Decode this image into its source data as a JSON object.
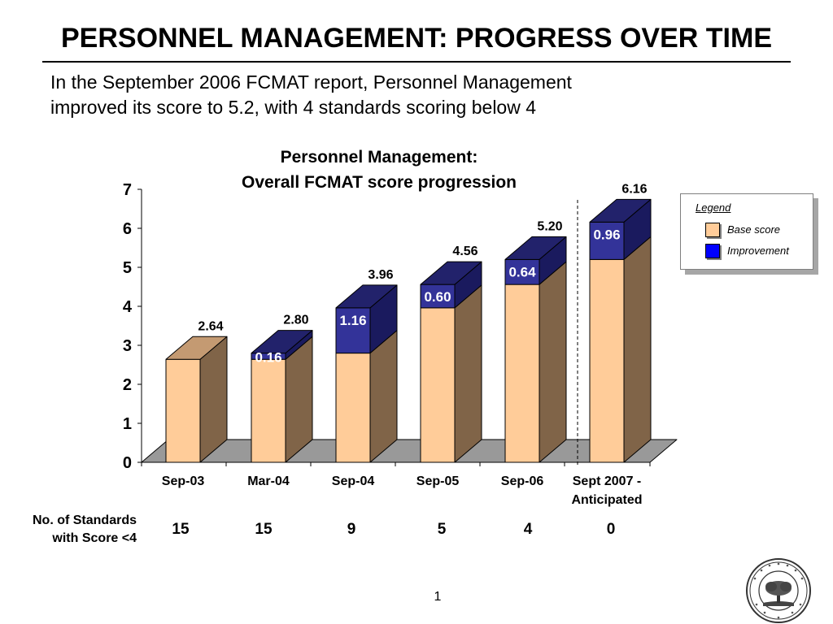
{
  "slide": {
    "title": "PERSONNEL MANAGEMENT: PROGRESS OVER TIME",
    "subtitle_lines": [
      "In the September 2006 FCMAT report, Personnel Management",
      "improved its score to 5.2, with 4 standards scoring below 4"
    ],
    "page_number": "1"
  },
  "legend": {
    "title": "Legend",
    "items": [
      {
        "label": "Base score",
        "color": "#FFCC99"
      },
      {
        "label": "Improvement",
        "color": "#0000FF"
      }
    ]
  },
  "standards_row": {
    "label_lines": [
      "No. of Standards",
      "with Score <4"
    ],
    "values": [
      "15",
      "15",
      "9",
      "5",
      "4",
      "0"
    ]
  },
  "chart_data": {
    "type": "bar",
    "stacked": true,
    "title_lines": [
      "Personnel Management:",
      "Overall FCMAT score progression"
    ],
    "categories": [
      "Sep-03",
      "Mar-04",
      "Sep-04",
      "Sep-05",
      "Sep-06",
      "Sept 2007 - Anticipated"
    ],
    "category_label_lines": [
      [
        "Sep-03"
      ],
      [
        "Mar-04"
      ],
      [
        "Sep-04"
      ],
      [
        "Sep-05"
      ],
      [
        "Sep-06"
      ],
      [
        "Sept 2007 -",
        "Anticipated"
      ]
    ],
    "series": [
      {
        "name": "Base score",
        "values": [
          2.64,
          2.64,
          2.8,
          3.96,
          4.56,
          5.2
        ]
      },
      {
        "name": "Improvement",
        "values": [
          0,
          0.16,
          1.16,
          0.6,
          0.64,
          0.96
        ]
      }
    ],
    "improvement_labels": [
      "",
      "0.16",
      "1.16",
      "0.60",
      "0.64",
      "0.96"
    ],
    "total_labels": [
      "2.64",
      "2.80",
      "3.96",
      "4.56",
      "5.20",
      "6.16"
    ],
    "yticks": [
      "0",
      "1",
      "2",
      "3",
      "4",
      "5",
      "6",
      "7"
    ],
    "ylim": [
      0,
      7
    ],
    "divider_after_index": 4,
    "colors": {
      "base_front": "#FFCC99",
      "base_side": "#806448",
      "base_top": "#C49A72",
      "improvement_front": "#333399",
      "improvement_side": "#1A1A5E",
      "improvement_top": "#22226B",
      "floor": "#999999"
    }
  }
}
